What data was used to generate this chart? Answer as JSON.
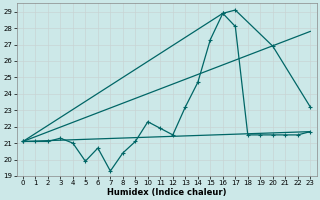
{
  "xlabel": "Humidex (Indice chaleur)",
  "bg_color": "#cce8e8",
  "grid_color": "#c8d4d4",
  "line_color": "#006666",
  "xlim": [
    -0.5,
    23.5
  ],
  "ylim": [
    19,
    29.5
  ],
  "yticks": [
    19,
    20,
    21,
    22,
    23,
    24,
    25,
    26,
    27,
    28,
    29
  ],
  "xticks": [
    0,
    1,
    2,
    3,
    4,
    5,
    6,
    7,
    8,
    9,
    10,
    11,
    12,
    13,
    14,
    15,
    16,
    17,
    18,
    19,
    20,
    21,
    22,
    23
  ],
  "series1_x": [
    0,
    1,
    2,
    3,
    4,
    5,
    6,
    7,
    8,
    9,
    10,
    11,
    12,
    13,
    14,
    15,
    16,
    17,
    18,
    19,
    20,
    21,
    22,
    23
  ],
  "series1_y": [
    21.1,
    21.1,
    21.1,
    21.3,
    21.0,
    19.9,
    20.7,
    19.3,
    20.4,
    21.1,
    22.3,
    21.9,
    21.5,
    23.2,
    24.7,
    27.3,
    28.9,
    28.1,
    21.5,
    21.5,
    21.5,
    21.5,
    21.5,
    21.7
  ],
  "series2_x": [
    0,
    23
  ],
  "series2_y": [
    21.1,
    21.7
  ],
  "series3_x": [
    0,
    16,
    17,
    20,
    23
  ],
  "series3_y": [
    21.1,
    28.9,
    29.1,
    26.9,
    23.2
  ],
  "series4_x": [
    0,
    23
  ],
  "series4_y": [
    21.1,
    27.8
  ]
}
